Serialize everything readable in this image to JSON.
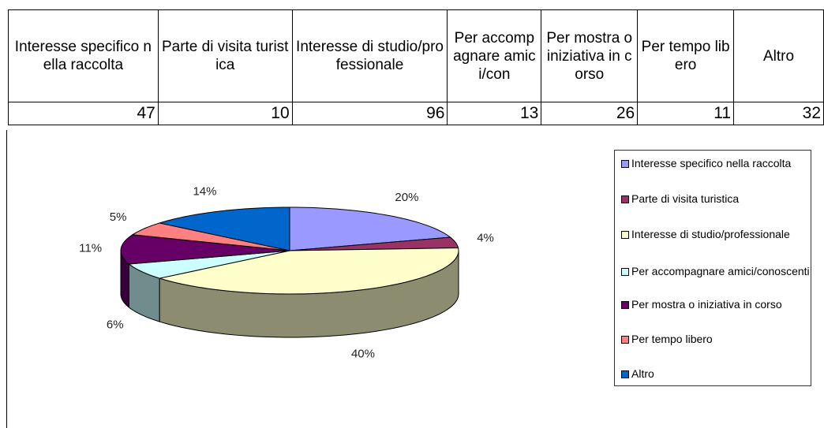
{
  "table": {
    "headers": [
      "Interesse specifico nella raccolta",
      "Parte di visita turistica",
      "Interesse di studio/professionale",
      "Per accompagnare amici/con",
      "Per mostra o iniziativa in corso",
      "Per tempo libero",
      "Altro"
    ],
    "values": [
      47,
      10,
      96,
      13,
      26,
      11,
      32
    ]
  },
  "chart_data": {
    "type": "pie",
    "categories": [
      "Interesse specifico nella raccolta",
      "Parte di visita turistica",
      "Interesse di studio/professionale",
      "Per accompagnare amici/conoscenti",
      "Per mostra o iniziativa in corso",
      "Per tempo libero",
      "Altro"
    ],
    "values": [
      20,
      4,
      40,
      6,
      11,
      5,
      14
    ],
    "value_labels": [
      "20%",
      "4%",
      "40%",
      "6%",
      "11%",
      "5%",
      "14%"
    ],
    "colors": [
      "#9999ff",
      "#993366",
      "#ffffcc",
      "#ccffff",
      "#660066",
      "#ff8080",
      "#0066cc"
    ],
    "legend": "right"
  }
}
